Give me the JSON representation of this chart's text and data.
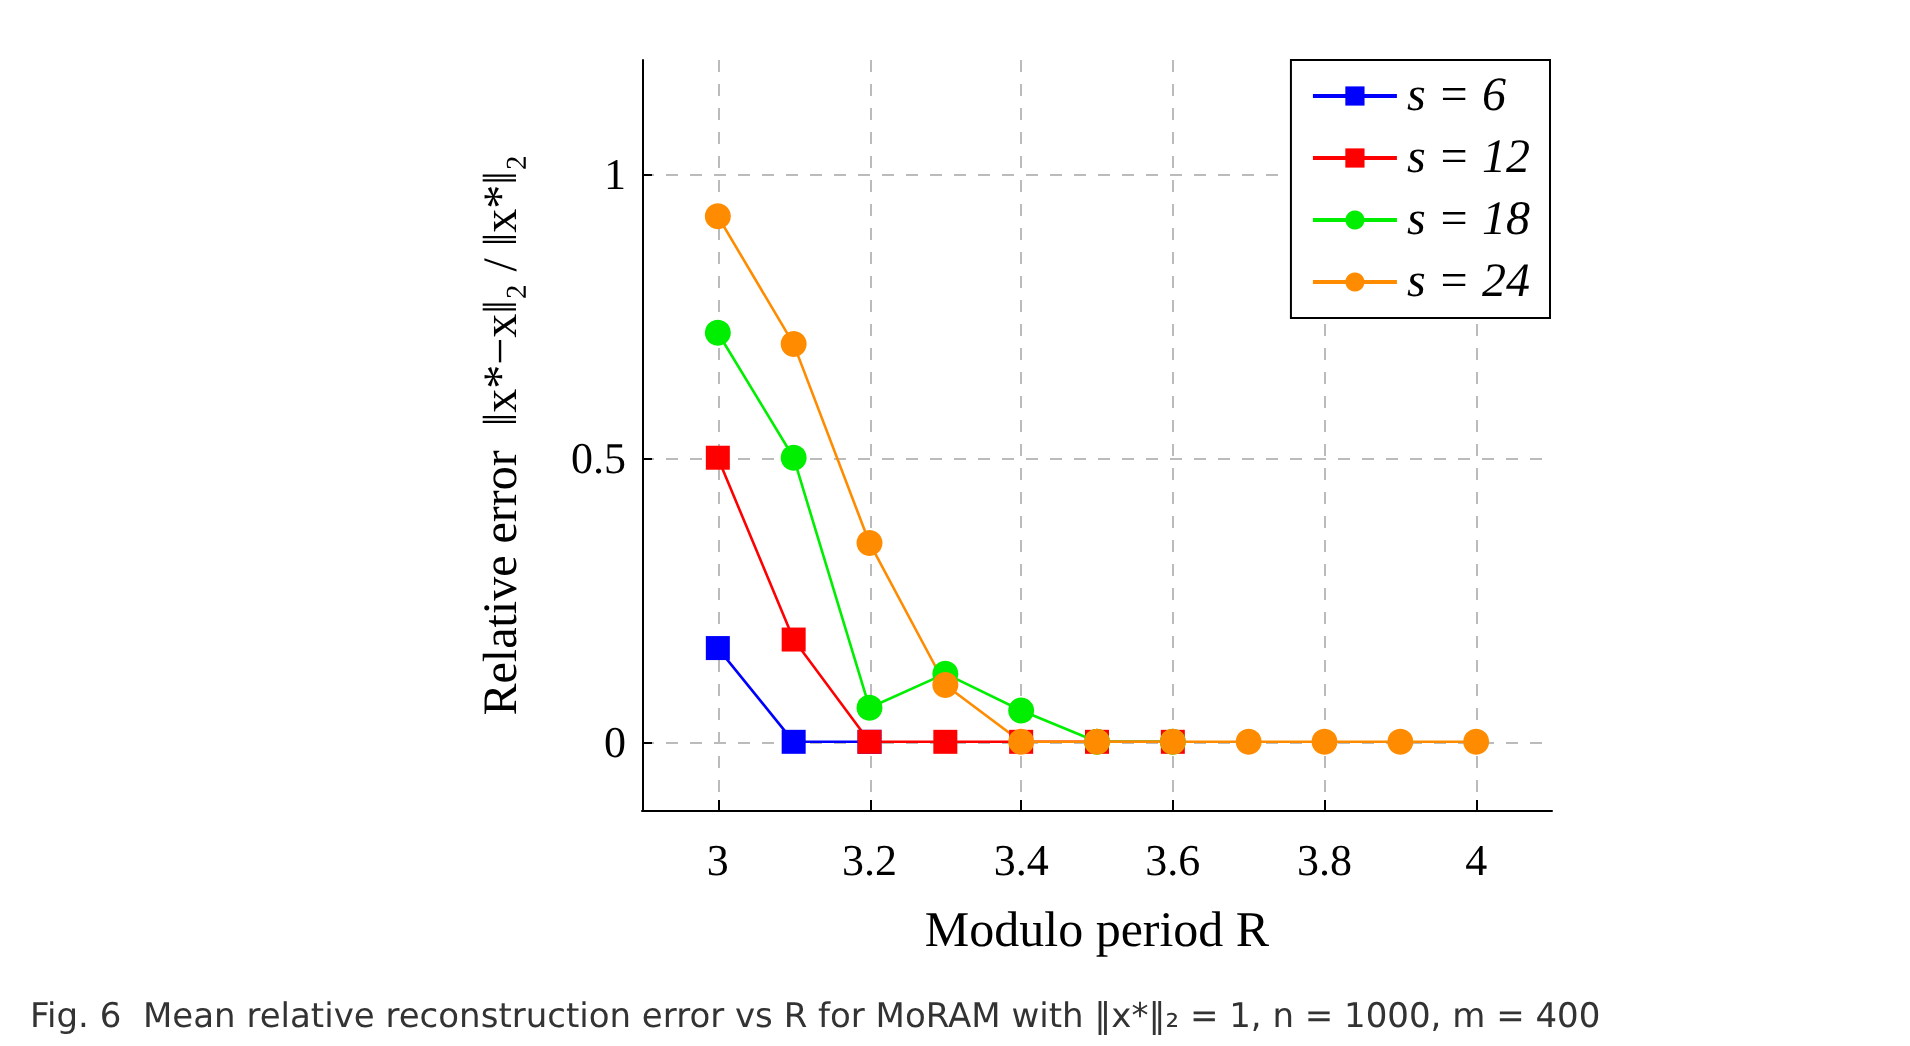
{
  "chart_data": {
    "type": "line",
    "xlabel": "Modulo period R",
    "ylabel": "Relative error  ‖x*−x‖₂ / ‖x*‖₂",
    "x": [
      3,
      3.1,
      3.2,
      3.3,
      3.4,
      3.5,
      3.6,
      3.7,
      3.8,
      3.9,
      4
    ],
    "series": [
      {
        "name": "s = 6",
        "color": "#0000ff",
        "marker": "square",
        "values": [
          0.165,
          0,
          0,
          null,
          null,
          null,
          null,
          null,
          null,
          null,
          null
        ]
      },
      {
        "name": "s = 12",
        "color": "#ff0000",
        "marker": "square",
        "values": [
          0.5,
          0.18,
          0,
          0,
          0,
          0,
          0,
          null,
          null,
          null,
          null
        ]
      },
      {
        "name": "s = 18",
        "color": "#00ee00",
        "marker": "circle",
        "values": [
          0.72,
          0.5,
          0.06,
          0.12,
          0.055,
          0,
          0,
          null,
          null,
          null,
          null
        ]
      },
      {
        "name": "s = 24",
        "color": "#ff8c00",
        "marker": "circle",
        "values": [
          0.925,
          0.7,
          0.35,
          0.1,
          0,
          0,
          0,
          0,
          0,
          0,
          0
        ]
      }
    ],
    "xlim": [
      2.9,
      4.1
    ],
    "xticks": [
      3,
      3.2,
      3.4,
      3.6,
      3.8,
      4
    ],
    "ylim": [
      -0.12,
      1.2
    ],
    "yticks": [
      0,
      0.5,
      1
    ],
    "grid": true,
    "legend": "top right",
    "annotations": [
      "Fig. 6  Mean relative reconstruction error vs R for MoRAM with ‖x*‖₂ = 1, n = 1000, m = 400"
    ]
  }
}
